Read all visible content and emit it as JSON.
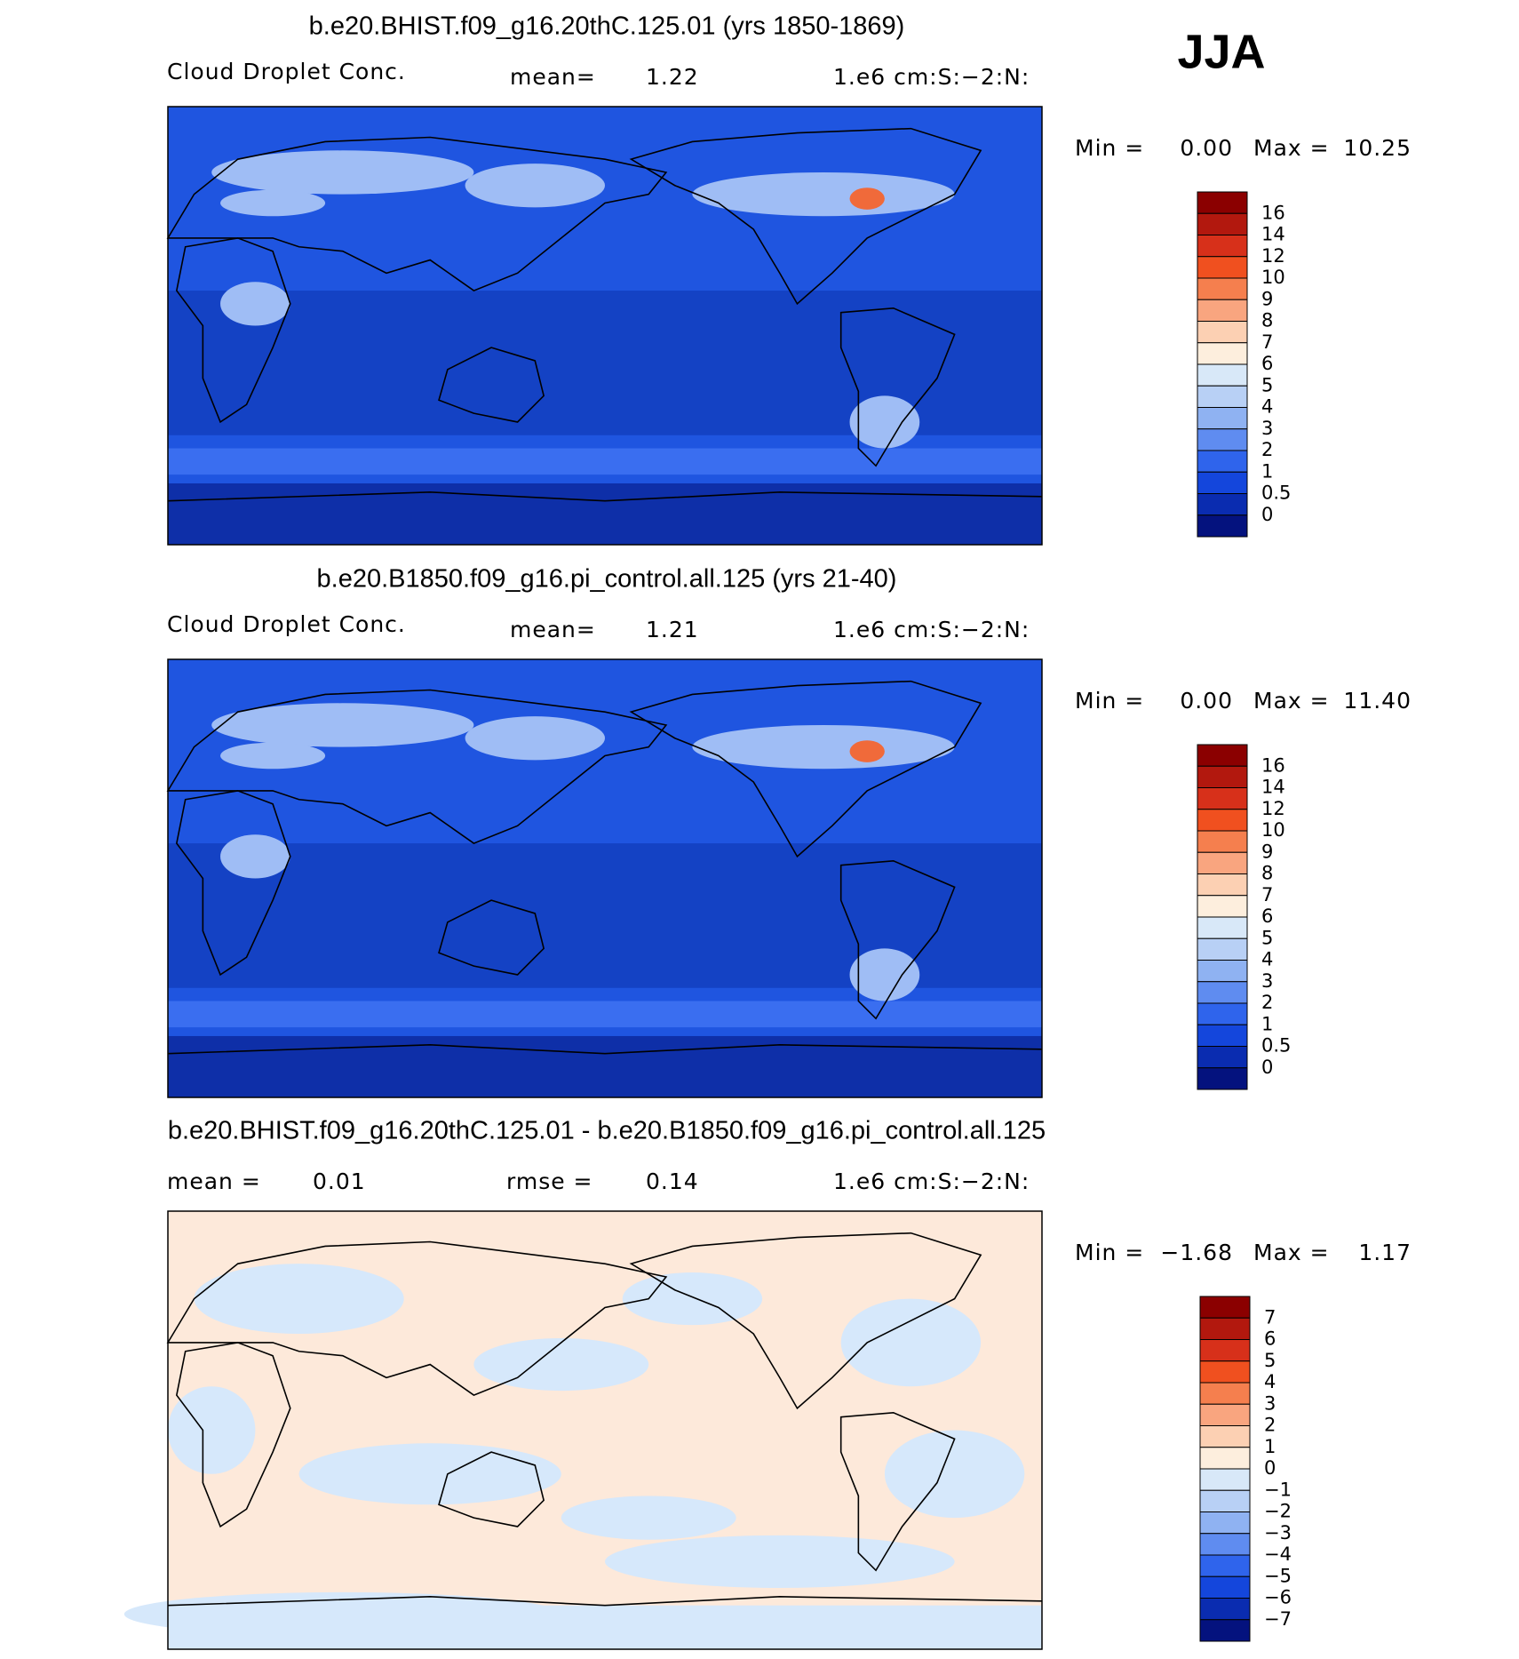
{
  "season": "JJA",
  "panels": [
    {
      "title": "b.e20.BHIST.f09_g16.20thC.125.01 (yrs 1850-1869)",
      "variable": "Cloud Droplet Conc.",
      "stats": [
        {
          "label": "mean=",
          "value": "1.22"
        }
      ],
      "units": "1.e6 cm:S:−2:N:",
      "min_label": "Min =",
      "min": "0.00",
      "max_label": "Max =",
      "max": "10.25",
      "colorbar": [
        "16",
        "14",
        "12",
        "10",
        "9",
        "8",
        "7",
        "6",
        "5",
        "4",
        "3",
        "2",
        "1",
        "0.5",
        "0"
      ],
      "colors": [
        "#8b0000",
        "#b2180e",
        "#d7301a",
        "#f0501f",
        "#f57f4e",
        "#f9a57f",
        "#fcd0b3",
        "#fdeedd",
        "#d8e8f8",
        "#b8d0f5",
        "#8fb2f2",
        "#5f8cf0",
        "#2f64ec",
        "#1446dc",
        "#0a2cb0",
        "#04127e"
      ]
    },
    {
      "title": "b.e20.B1850.f09_g16.pi_control.all.125 (yrs 21-40)",
      "variable": "Cloud Droplet Conc.",
      "stats": [
        {
          "label": "mean=",
          "value": "1.21"
        }
      ],
      "units": "1.e6 cm:S:−2:N:",
      "min_label": "Min =",
      "min": "0.00",
      "max_label": "Max =",
      "max": "11.40",
      "colorbar": [
        "16",
        "14",
        "12",
        "10",
        "9",
        "8",
        "7",
        "6",
        "5",
        "4",
        "3",
        "2",
        "1",
        "0.5",
        "0"
      ],
      "colors": [
        "#8b0000",
        "#b2180e",
        "#d7301a",
        "#f0501f",
        "#f57f4e",
        "#f9a57f",
        "#fcd0b3",
        "#fdeedd",
        "#d8e8f8",
        "#b8d0f5",
        "#8fb2f2",
        "#5f8cf0",
        "#2f64ec",
        "#1446dc",
        "#0a2cb0",
        "#04127e"
      ]
    },
    {
      "title": "b.e20.BHIST.f09_g16.20thC.125.01 - b.e20.B1850.f09_g16.pi_control.all.125",
      "stats": [
        {
          "label": "mean =",
          "value": "0.01"
        },
        {
          "label": "rmse =",
          "value": "0.14"
        }
      ],
      "units": "1.e6 cm:S:−2:N:",
      "min_label": "Min =",
      "min": "−1.68",
      "max_label": "Max =",
      "max": "1.17",
      "colorbar": [
        "7",
        "6",
        "5",
        "4",
        "3",
        "2",
        "1",
        "0",
        "−1",
        "−2",
        "−3",
        "−4",
        "−5",
        "−6",
        "−7"
      ],
      "colors": [
        "#8b0000",
        "#b2180e",
        "#d7301a",
        "#f0501f",
        "#f57f4e",
        "#f9a57f",
        "#fcd0b3",
        "#fdeedd",
        "#d8e8f8",
        "#b8d0f5",
        "#8fb2f2",
        "#5f8cf0",
        "#2f64ec",
        "#1446dc",
        "#0a2cb0",
        "#04127e"
      ]
    }
  ]
}
